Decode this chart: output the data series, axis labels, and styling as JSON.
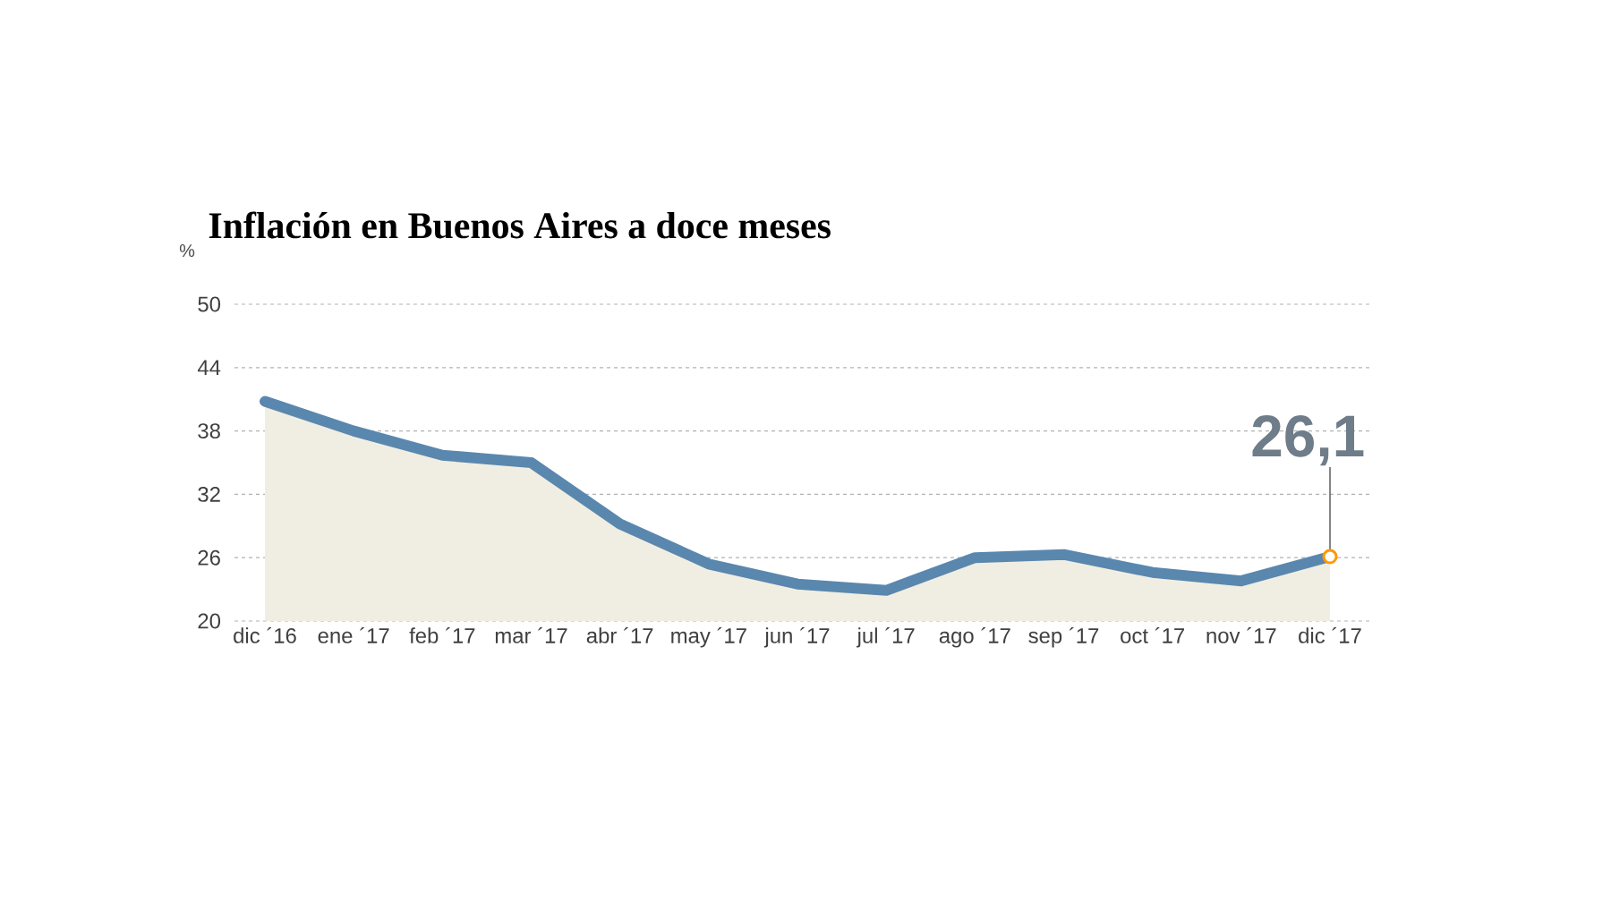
{
  "chart_data": {
    "type": "area",
    "title": "Inflación en Buenos Aires a doce meses",
    "ylabel": "%",
    "categories": [
      "dic ´16",
      "ene ´17",
      "feb ´17",
      "mar ´17",
      "abr ´17",
      "may ´17",
      "jun ´17",
      "jul ´17",
      "ago ´17",
      "sep ´17",
      "oct ´17",
      "nov ´17",
      "dic ´17"
    ],
    "series": [
      {
        "color": "#5a87ae",
        "values": [
          40.8,
          38.0,
          35.7,
          35.0,
          29.2,
          25.4,
          23.5,
          22.9,
          26.0,
          26.3,
          24.6,
          23.8,
          26.1
        ]
      }
    ],
    "ylim": [
      20,
      50
    ],
    "yticks": [
      20,
      26,
      32,
      38,
      44,
      50
    ],
    "grid": "y",
    "annotations": [
      {
        "text": "26,1",
        "x": "dic ´17",
        "y": 26.1
      }
    ]
  }
}
